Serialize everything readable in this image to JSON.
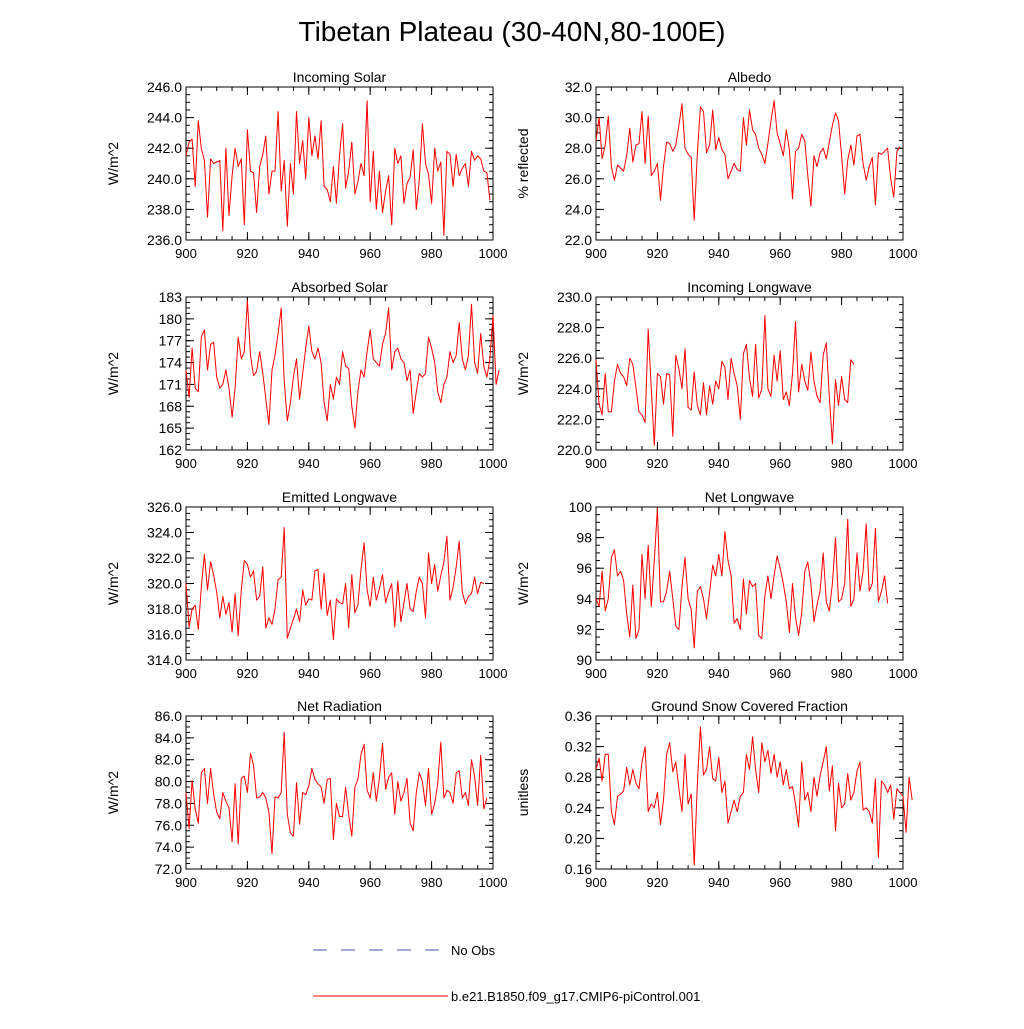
{
  "title": "Tibetan Plateau (30-40N,80-100E)",
  "legend": {
    "no_obs_label": "No Obs",
    "model_label": "b.e21.B1850.f09_g17.CMIP6-piControl.001",
    "no_obs_color": "#4a52a8",
    "model_color": "#ff0000"
  },
  "chart_data": [
    {
      "type": "line",
      "title": "Incoming Solar",
      "ylabel": "W/m^2",
      "xlim": [
        900,
        1000
      ],
      "ylim": [
        236,
        246
      ],
      "xticks": [
        "900",
        "920",
        "940",
        "960",
        "980",
        "1000"
      ],
      "yticks": [
        "236.0",
        "238.0",
        "240.0",
        "242.0",
        "244.0",
        "246.0"
      ],
      "x_start": 900,
      "series": [
        {
          "name": "b.e21.B1850.f09_g17.CMIP6-piControl.001",
          "color": "#ff0000",
          "values": [
            241.5,
            242.4,
            242.6,
            239.5,
            243.8,
            242.0,
            241.2,
            237.5,
            241.3,
            241.0,
            241.1,
            241.2,
            236.6,
            242.0,
            237.6,
            240.2,
            242.0,
            240.8,
            241.3,
            237.0,
            243.2,
            240.5,
            240.4,
            237.8,
            240.8,
            241.6,
            242.8,
            239.0,
            240.5,
            240.5,
            244.4,
            239.2,
            241.2,
            236.9,
            241.0,
            239.0,
            244.4,
            241.0,
            242.5,
            240.0,
            244.0,
            241.5,
            242.8,
            241.3,
            243.8,
            239.5,
            239.3,
            238.5,
            240.8,
            238.4,
            241.5,
            243.6,
            239.4,
            240.5,
            242.4,
            239.0,
            239.8,
            241.0,
            240.2,
            245.1,
            238.5,
            241.8,
            238.0,
            240.5,
            237.8,
            239.2,
            240.2,
            237.0,
            242.0,
            241.0,
            241.5,
            238.4,
            239.7,
            240.1,
            241.9,
            238.0,
            239.9,
            243.6,
            241.0,
            240.3,
            238.4,
            242.0,
            240.5,
            241.1,
            236.3,
            241.8,
            241.6,
            239.5,
            241.6,
            240.2,
            240.7,
            241.0,
            239.5,
            241.8,
            241.2,
            241.5,
            241.3,
            240.5,
            240.4,
            238.6
          ]
        }
      ]
    },
    {
      "type": "line",
      "title": "Albedo",
      "ylabel": "% reflected",
      "xlim": [
        900,
        1000
      ],
      "ylim": [
        22,
        32
      ],
      "xticks": [
        "900",
        "920",
        "940",
        "960",
        "980",
        "1000"
      ],
      "yticks": [
        "22.0",
        "24.0",
        "26.0",
        "28.0",
        "30.0",
        "32.0"
      ],
      "x_start": 900,
      "series": [
        {
          "name": "b.e21.B1850.f09_g17.CMIP6-piControl.001",
          "color": "#ff0000",
          "values": [
            28.5,
            30.0,
            27.3,
            28.2,
            30.1,
            26.8,
            25.9,
            26.9,
            26.7,
            26.5,
            27.5,
            29.3,
            27.1,
            28.2,
            28.3,
            30.4,
            27.0,
            30.1,
            26.2,
            26.5,
            27.0,
            24.6,
            26.8,
            28.4,
            28.3,
            27.8,
            28.2,
            29.5,
            30.9,
            28.0,
            27.6,
            27.4,
            23.3,
            27.6,
            30.7,
            30.4,
            27.7,
            28.2,
            30.5,
            27.9,
            28.7,
            27.9,
            27.6,
            26.0,
            26.5,
            27.0,
            26.6,
            26.5,
            30.0,
            28.2,
            30.5,
            29.2,
            28.9,
            28.0,
            27.6,
            27.0,
            28.3,
            29.8,
            31.1,
            29.0,
            28.3,
            27.5,
            29.2,
            27.9,
            24.7,
            27.8,
            28.0,
            28.9,
            28.5,
            26.2,
            24.2,
            27.5,
            26.8,
            27.7,
            28.0,
            27.3,
            28.4,
            29.5,
            30.3,
            29.8,
            27.5,
            25.0,
            27.2,
            28.2,
            26.9,
            28.8,
            28.9,
            27.0,
            25.9,
            26.8,
            27.4,
            24.3,
            27.7,
            27.6,
            27.8,
            28.0,
            26.0,
            24.8,
            27.8,
            28.1
          ]
        }
      ]
    },
    {
      "type": "line",
      "title": "Absorbed Solar",
      "ylabel": "W/m^2",
      "xlim": [
        900,
        1000
      ],
      "ylim": [
        162,
        183
      ],
      "xticks": [
        "900",
        "920",
        "940",
        "960",
        "980",
        "1000"
      ],
      "yticks": [
        "162",
        "165",
        "168",
        "171",
        "174",
        "177",
        "180",
        "183"
      ],
      "x_start": 900,
      "series": [
        {
          "name": "b.e21.B1850.f09_g17.CMIP6-piControl.001",
          "color": "#ff0000",
          "values": [
            173.0,
            169.2,
            176.0,
            170.5,
            170.0,
            177.5,
            178.5,
            173.0,
            176.5,
            176.8,
            172.0,
            170.5,
            171.0,
            173.0,
            170.5,
            166.5,
            170.5,
            177.5,
            174.5,
            175.5,
            182.5,
            175.0,
            172.2,
            172.8,
            175.5,
            172.5,
            169.0,
            165.5,
            173.0,
            175.0,
            178.0,
            181.5,
            171.5,
            166.0,
            168.5,
            172.0,
            174.5,
            169.0,
            172.5,
            176.0,
            179.0,
            175.5,
            174.5,
            176.0,
            174.0,
            168.5,
            166.0,
            171.0,
            169.0,
            172.0,
            171.0,
            175.5,
            173.5,
            173.2,
            168.0,
            165.0,
            170.0,
            173.0,
            172.0,
            175.5,
            178.5,
            174.5,
            174.0,
            173.5,
            176.5,
            178.0,
            181.5,
            173.0,
            175.5,
            176.0,
            174.5,
            174.0,
            171.5,
            173.0,
            167.0,
            170.0,
            172.5,
            172.0,
            172.5,
            177.5,
            176.0,
            174.0,
            170.0,
            168.5,
            171.0,
            172.0,
            175.5,
            174.0,
            175.0,
            179.5,
            174.5,
            173.0,
            175.0,
            182.0,
            174.0,
            172.5,
            178.0,
            173.5,
            172.0,
            174.5,
            180.5,
            171.0,
            173.0
          ]
        }
      ]
    },
    {
      "type": "line",
      "title": "Incoming Longwave",
      "ylabel": "W/m^2",
      "xlim": [
        900,
        1000
      ],
      "ylim": [
        220,
        230
      ],
      "xticks": [
        "900",
        "920",
        "940",
        "960",
        "980",
        "1000"
      ],
      "yticks": [
        "220.0",
        "222.0",
        "224.0",
        "226.0",
        "228.0",
        "230.0"
      ],
      "x_start": 900,
      "series": [
        {
          "name": "b.e21.B1850.f09_g17.CMIP6-piControl.001",
          "color": "#ff0000",
          "values": [
            225.9,
            223.0,
            222.3,
            225.0,
            222.5,
            222.5,
            224.5,
            225.6,
            225.0,
            224.8,
            224.2,
            226.0,
            225.6,
            224.1,
            222.5,
            222.3,
            221.8,
            227.9,
            224.0,
            220.3,
            225.0,
            224.8,
            223.0,
            225.0,
            224.9,
            220.9,
            226.2,
            225.3,
            224.0,
            226.6,
            222.8,
            222.6,
            225.1,
            222.9,
            222.3,
            224.4,
            222.3,
            224.2,
            223.0,
            224.5,
            224.0,
            225.8,
            225.4,
            223.3,
            226.0,
            225.0,
            224.2,
            222.0,
            226.3,
            226.9,
            224.7,
            223.5,
            226.9,
            223.4,
            224.0,
            228.8,
            224.0,
            223.5,
            226.2,
            224.5,
            226.5,
            223.3,
            223.8,
            222.9,
            225.0,
            228.4,
            223.8,
            225.6,
            224.5,
            223.9,
            226.4,
            224.5,
            223.5,
            223.1,
            226.2,
            227.0,
            223.5,
            220.4,
            224.6,
            222.9,
            224.8,
            223.3,
            223.1,
            225.9,
            225.6
          ]
        }
      ]
    },
    {
      "type": "line",
      "title": "Emitted Longwave",
      "ylabel": "W/m^2",
      "xlim": [
        900,
        1000
      ],
      "ylim": [
        314,
        326
      ],
      "xticks": [
        "900",
        "920",
        "940",
        "960",
        "980",
        "1000"
      ],
      "yticks": [
        "314.0",
        "316.0",
        "318.0",
        "320.0",
        "322.0",
        "324.0",
        "326.0"
      ],
      "x_start": 900,
      "series": [
        {
          "name": "b.e21.B1850.f09_g17.CMIP6-piControl.001",
          "color": "#ff0000",
          "values": [
            320.0,
            316.6,
            318.0,
            318.3,
            316.4,
            319.7,
            322.3,
            319.5,
            321.7,
            320.7,
            319.3,
            317.3,
            319.0,
            317.6,
            318.5,
            316.2,
            319.2,
            315.9,
            319.5,
            321.8,
            321.5,
            320.5,
            321.0,
            318.7,
            319.0,
            321.3,
            316.5,
            317.3,
            316.8,
            318.0,
            320.3,
            320.5,
            324.4,
            315.7,
            316.5,
            317.2,
            318.0,
            317.0,
            319.5,
            318.3,
            318.8,
            318.7,
            321.0,
            321.1,
            318.0,
            320.8,
            317.5,
            318.7,
            315.6,
            318.8,
            318.5,
            318.4,
            320.0,
            316.5,
            320.7,
            317.7,
            318.3,
            321.1,
            323.2,
            319.5,
            318.2,
            320.5,
            318.7,
            319.6,
            320.7,
            318.5,
            319.3,
            320.0,
            316.6,
            320.2,
            317.0,
            318.5,
            320.0,
            318.0,
            317.8,
            319.4,
            320.5,
            320.0,
            317.3,
            322.4,
            320.0,
            321.5,
            319.4,
            320.6,
            321.7,
            323.7,
            318.7,
            319.7,
            321.3,
            323.3,
            319.3,
            318.4,
            319.0,
            319.2,
            320.5,
            319.2,
            320.1,
            320.0
          ]
        }
      ]
    },
    {
      "type": "line",
      "title": "Net Longwave",
      "ylabel": "W/m^2",
      "xlim": [
        900,
        1000
      ],
      "ylim": [
        90,
        100
      ],
      "xticks": [
        "900",
        "920",
        "940",
        "960",
        "980",
        "1000"
      ],
      "yticks": [
        "90",
        "92",
        "94",
        "96",
        "98",
        "100"
      ],
      "x_start": 900,
      "series": [
        {
          "name": "b.e21.B1850.f09_g17.CMIP6-piControl.001",
          "color": "#ff0000",
          "values": [
            94.0,
            93.5,
            95.8,
            93.2,
            94.0,
            96.7,
            97.2,
            95.5,
            95.8,
            95.2,
            93.0,
            91.5,
            94.9,
            91.4,
            92.0,
            96.9,
            94.0,
            97.5,
            93.5,
            96.5,
            99.9,
            93.8,
            93.8,
            94.5,
            95.8,
            94.0,
            92.2,
            92.0,
            94.8,
            96.7,
            94.0,
            93.3,
            90.8,
            94.5,
            94.8,
            94.0,
            92.7,
            94.4,
            96.2,
            95.5,
            96.9,
            95.5,
            98.4,
            96.5,
            95.5,
            92.4,
            92.7,
            92.0,
            95.3,
            93.0,
            95.2,
            94.8,
            95.0,
            91.6,
            91.4,
            94.2,
            95.5,
            94.0,
            95.5,
            96.8,
            96.0,
            95.0,
            93.8,
            91.8,
            95.0,
            92.8,
            91.6,
            93.1,
            95.8,
            96.4,
            95.0,
            92.5,
            93.6,
            94.5,
            97.0,
            93.8,
            93.2,
            95.0,
            98.0,
            93.8,
            94.0,
            95.0,
            99.2,
            93.5,
            94.0,
            97.0,
            94.5,
            95.8,
            98.9,
            94.5,
            95.0,
            98.6,
            93.8,
            94.5,
            95.5,
            93.7
          ]
        }
      ]
    },
    {
      "type": "line",
      "title": "Net Radiation",
      "ylabel": "W/m^2",
      "xlim": [
        900,
        1000
      ],
      "ylim": [
        72,
        86
      ],
      "xticks": [
        "900",
        "920",
        "940",
        "960",
        "980",
        "1000"
      ],
      "yticks": [
        "72.0",
        "74.0",
        "76.0",
        "78.0",
        "80.0",
        "82.0",
        "84.0",
        "86.0"
      ],
      "x_start": 900,
      "series": [
        {
          "name": "b.e21.B1850.f09_g17.CMIP6-piControl.001",
          "color": "#ff0000",
          "values": [
            79.0,
            75.7,
            80.1,
            77.5,
            76.2,
            80.8,
            81.2,
            78.0,
            81.2,
            78.9,
            77.2,
            76.6,
            79.0,
            78.2,
            77.6,
            74.5,
            79.8,
            74.3,
            80.3,
            80.5,
            79.0,
            82.6,
            81.5,
            78.5,
            78.6,
            79.0,
            78.5,
            77.2,
            73.4,
            78.6,
            78.5,
            79.0,
            84.5,
            77.0,
            75.3,
            75.0,
            79.9,
            76.1,
            79.0,
            78.8,
            79.6,
            81.2,
            80.2,
            79.8,
            79.5,
            78.0,
            80.2,
            80.3,
            74.7,
            78.0,
            76.8,
            76.8,
            79.5,
            77.0,
            75.0,
            79.5,
            80.2,
            82.5,
            83.4,
            79.2,
            78.5,
            80.8,
            78.2,
            80.3,
            83.5,
            79.3,
            80.4,
            80.8,
            77.0,
            80.0,
            78.2,
            79.0,
            80.3,
            76.2,
            75.5,
            79.0,
            80.8,
            80.0,
            77.8,
            81.2,
            77.0,
            78.0,
            79.8,
            83.6,
            78.5,
            79.2,
            79.0,
            78.0,
            80.8,
            81.0,
            78.5,
            79.0,
            77.8,
            82.0,
            80.5,
            77.8,
            82.4,
            77.5,
            78.5
          ]
        }
      ]
    },
    {
      "type": "line",
      "title": "Ground Snow Covered Fraction",
      "ylabel": "unitless",
      "xlim": [
        900,
        1000
      ],
      "ylim": [
        0.16,
        0.36
      ],
      "xticks": [
        "900",
        "920",
        "940",
        "960",
        "980",
        "1000"
      ],
      "yticks": [
        "0.16",
        "0.20",
        "0.24",
        "0.28",
        "0.32",
        "0.36"
      ],
      "x_start": 900,
      "series": [
        {
          "name": "b.e21.B1850.f09_g17.CMIP6-piControl.001",
          "color": "#ff0000",
          "values": [
            0.29,
            0.305,
            0.275,
            0.31,
            0.31,
            0.235,
            0.218,
            0.255,
            0.258,
            0.262,
            0.293,
            0.27,
            0.29,
            0.272,
            0.265,
            0.3,
            0.32,
            0.235,
            0.245,
            0.24,
            0.26,
            0.218,
            0.25,
            0.31,
            0.325,
            0.287,
            0.3,
            0.265,
            0.235,
            0.31,
            0.245,
            0.258,
            0.165,
            0.27,
            0.346,
            0.283,
            0.29,
            0.32,
            0.278,
            0.275,
            0.306,
            0.26,
            0.275,
            0.22,
            0.235,
            0.25,
            0.235,
            0.255,
            0.26,
            0.31,
            0.29,
            0.333,
            0.29,
            0.26,
            0.325,
            0.3,
            0.315,
            0.285,
            0.31,
            0.28,
            0.3,
            0.27,
            0.29,
            0.265,
            0.268,
            0.245,
            0.215,
            0.3,
            0.25,
            0.26,
            0.235,
            0.28,
            0.255,
            0.282,
            0.3,
            0.32,
            0.262,
            0.295,
            0.21,
            0.272,
            0.24,
            0.245,
            0.285,
            0.25,
            0.26,
            0.288,
            0.3,
            0.237,
            0.24,
            0.235,
            0.22,
            0.278,
            0.175,
            0.275,
            0.27,
            0.26,
            0.27,
            0.225,
            0.265,
            0.26,
            0.255,
            0.208,
            0.28,
            0.25
          ]
        }
      ]
    }
  ]
}
